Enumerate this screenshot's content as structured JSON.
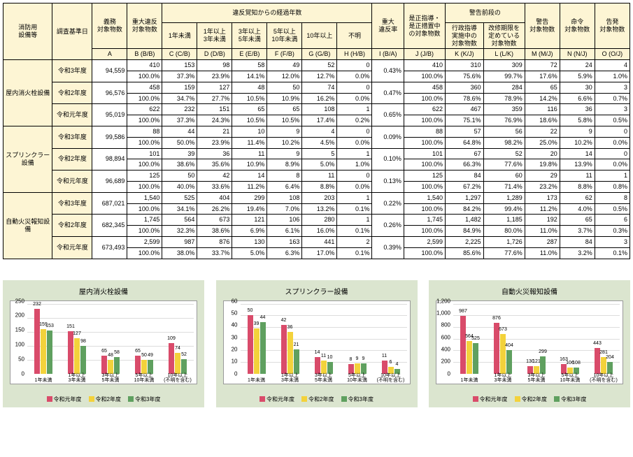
{
  "colors": {
    "r1": "#d94b6a",
    "r2": "#f3d23b",
    "r3": "#5fa05f",
    "label_bg": "#fdf5d4",
    "panel_bg": "#dbe5cf"
  },
  "table": {
    "headers": {
      "equip": "消防用\n設備等",
      "survey_date": "調査基準日",
      "obligation": "義務\n対象物数",
      "major_violation": "重大違反\n対象物数",
      "elapsed_group": "違反覚知からの経過年数",
      "elapsed": [
        "1年未満",
        "1年以上\n3年未満",
        "3年以上\n5年未満",
        "5年以上\n10年未満",
        "10年以上",
        "不明"
      ],
      "major_rate": "重大\n違反率",
      "corrective": "是正指導・\n是正措置中\nの対象物数",
      "pre_warning_group": "警告前段の",
      "admin_guidance": "行政指導\n実施中の\n対象物数",
      "improve_deadline": "改修期限を\n定めている\n対象物数",
      "warning": "警告\n対象物数",
      "order": "命令\n対象物数",
      "accusation": "告発\n対象物数"
    },
    "col_letters": [
      "A",
      "B (B/B)",
      "C (C/B)",
      "D (D/B)",
      "E (E/B)",
      "F (F/B)",
      "G (G/B)",
      "H (H/B)",
      "I (B/A)",
      "J (J/B)",
      "K (K/J)",
      "L (L/K)",
      "M (M/J)",
      "N (N/J)",
      "O (O/J)"
    ],
    "sections": [
      {
        "equip": "屋内消火栓設備",
        "years": [
          {
            "label": "令和3年度",
            "A": "94,559",
            "rows": [
              [
                "410",
                "153",
                "98",
                "58",
                "49",
                "52",
                "0",
                "",
                "410",
                "310",
                "309",
                "72",
                "24",
                "4"
              ],
              [
                "100.0%",
                "37.3%",
                "23.9%",
                "14.1%",
                "12.0%",
                "12.7%",
                "0.0%",
                "0.43%",
                "100.0%",
                "75.6%",
                "99.7%",
                "17.6%",
                "5.9%",
                "1.0%"
              ]
            ]
          },
          {
            "label": "令和2年度",
            "A": "96,576",
            "rows": [
              [
                "458",
                "159",
                "127",
                "48",
                "50",
                "74",
                "0",
                "",
                "458",
                "360",
                "284",
                "65",
                "30",
                "3"
              ],
              [
                "100.0%",
                "34.7%",
                "27.7%",
                "10.5%",
                "10.9%",
                "16.2%",
                "0.0%",
                "0.47%",
                "100.0%",
                "78.6%",
                "78.9%",
                "14.2%",
                "6.6%",
                "0.7%"
              ]
            ]
          },
          {
            "label": "令和元年度",
            "A": "95,019",
            "rows": [
              [
                "622",
                "232",
                "151",
                "65",
                "65",
                "108",
                "1",
                "",
                "622",
                "467",
                "359",
                "116",
                "36",
                "3"
              ],
              [
                "100.0%",
                "37.3%",
                "24.3%",
                "10.5%",
                "10.5%",
                "17.4%",
                "0.2%",
                "0.65%",
                "100.0%",
                "75.1%",
                "76.9%",
                "18.6%",
                "5.8%",
                "0.5%"
              ]
            ]
          }
        ]
      },
      {
        "equip": "スプリンクラー設備",
        "years": [
          {
            "label": "令和3年度",
            "A": "99,586",
            "rows": [
              [
                "88",
                "44",
                "21",
                "10",
                "9",
                "4",
                "0",
                "",
                "88",
                "57",
                "56",
                "22",
                "9",
                "0"
              ],
              [
                "100.0%",
                "50.0%",
                "23.9%",
                "11.4%",
                "10.2%",
                "4.5%",
                "0.0%",
                "0.09%",
                "100.0%",
                "64.8%",
                "98.2%",
                "25.0%",
                "10.2%",
                "0.0%"
              ]
            ]
          },
          {
            "label": "令和2年度",
            "A": "98,894",
            "rows": [
              [
                "101",
                "39",
                "36",
                "11",
                "9",
                "5",
                "1",
                "",
                "101",
                "67",
                "52",
                "20",
                "14",
                "0"
              ],
              [
                "100.0%",
                "38.6%",
                "35.6%",
                "10.9%",
                "8.9%",
                "5.0%",
                "1.0%",
                "0.10%",
                "100.0%",
                "66.3%",
                "77.6%",
                "19.8%",
                "13.9%",
                "0.0%"
              ]
            ]
          },
          {
            "label": "令和元年度",
            "A": "96,689",
            "rows": [
              [
                "125",
                "50",
                "42",
                "14",
                "8",
                "11",
                "0",
                "",
                "125",
                "84",
                "60",
                "29",
                "11",
                "1"
              ],
              [
                "100.0%",
                "40.0%",
                "33.6%",
                "11.2%",
                "6.4%",
                "8.8%",
                "0.0%",
                "0.13%",
                "100.0%",
                "67.2%",
                "71.4%",
                "23.2%",
                "8.8%",
                "0.8%"
              ]
            ]
          }
        ]
      },
      {
        "equip": "自動火災報知設備",
        "years": [
          {
            "label": "令和3年度",
            "A": "687,021",
            "rows": [
              [
                "1,540",
                "525",
                "404",
                "299",
                "108",
                "203",
                "1",
                "",
                "1,540",
                "1,297",
                "1,289",
                "173",
                "62",
                "8"
              ],
              [
                "100.0%",
                "34.1%",
                "26.2%",
                "19.4%",
                "7.0%",
                "13.2%",
                "0.1%",
                "0.22%",
                "100.0%",
                "84.2%",
                "99.4%",
                "11.2%",
                "4.0%",
                "0.5%"
              ]
            ]
          },
          {
            "label": "令和2年度",
            "A": "682,345",
            "rows": [
              [
                "1,745",
                "564",
                "673",
                "121",
                "106",
                "280",
                "1",
                "",
                "1,745",
                "1,482",
                "1,185",
                "192",
                "65",
                "6"
              ],
              [
                "100.0%",
                "32.3%",
                "38.6%",
                "6.9%",
                "6.1%",
                "16.0%",
                "0.1%",
                "0.26%",
                "100.0%",
                "84.9%",
                "80.0%",
                "11.0%",
                "3.7%",
                "0.3%"
              ]
            ]
          },
          {
            "label": "令和元年度",
            "A": "673,493",
            "rows": [
              [
                "2,599",
                "987",
                "876",
                "130",
                "163",
                "441",
                "2",
                "",
                "2,599",
                "2,225",
                "1,726",
                "287",
                "84",
                "3"
              ],
              [
                "100.0%",
                "38.0%",
                "33.7%",
                "5.0%",
                "6.3%",
                "17.0%",
                "0.1%",
                "0.39%",
                "100.0%",
                "85.6%",
                "77.6%",
                "11.0%",
                "3.2%",
                "0.1%"
              ]
            ]
          }
        ]
      }
    ]
  },
  "charts": [
    {
      "title": "屋内消火栓設備",
      "ymax": 250,
      "ystep": 50,
      "categories": [
        "1年未満",
        "1年以上\n3年未満",
        "3年以上\n5年未満",
        "5年以上\n10年未満",
        "10年以上\n(不明を含む)"
      ],
      "series": [
        {
          "name": "令和元年度",
          "color": "#d94b6a",
          "values": [
            232,
            151,
            65,
            65,
            109
          ]
        },
        {
          "name": "令和2年度",
          "color": "#f3d23b",
          "values": [
            159,
            127,
            48,
            50,
            74
          ]
        },
        {
          "name": "令和3年度",
          "color": "#5fa05f",
          "values": [
            153,
            98,
            58,
            49,
            52
          ]
        }
      ]
    },
    {
      "title": "スプリンクラー設備",
      "ymax": 60,
      "ystep": 10,
      "categories": [
        "1年未満",
        "1年以上\n3年未満",
        "3年以上\n5年未満",
        "5年以上\n10年未満",
        "10年以上\n(不明を含む)"
      ],
      "series": [
        {
          "name": "令和元年度",
          "color": "#d94b6a",
          "values": [
            50,
            42,
            14,
            8,
            11
          ]
        },
        {
          "name": "令和2年度",
          "color": "#f3d23b",
          "values": [
            39,
            36,
            11,
            9,
            6
          ]
        },
        {
          "name": "令和3年度",
          "color": "#5fa05f",
          "values": [
            44,
            21,
            10,
            9,
            4
          ]
        }
      ]
    },
    {
      "title": "自動火災報知設備",
      "ymax": 1200,
      "ystep": 200,
      "categories": [
        "1年未満",
        "1年以上\n3年未満",
        "3年以上\n5年未満",
        "5年以上\n10年未満",
        "10年以上\n(不明を含む)"
      ],
      "series": [
        {
          "name": "令和元年度",
          "color": "#d94b6a",
          "values": [
            987,
            876,
            130,
            163,
            443
          ]
        },
        {
          "name": "令和2年度",
          "color": "#f3d23b",
          "values": [
            564,
            673,
            121,
            106,
            281
          ]
        },
        {
          "name": "令和3年度",
          "color": "#5fa05f",
          "values": [
            525,
            404,
            299,
            108,
            204
          ]
        }
      ]
    }
  ]
}
